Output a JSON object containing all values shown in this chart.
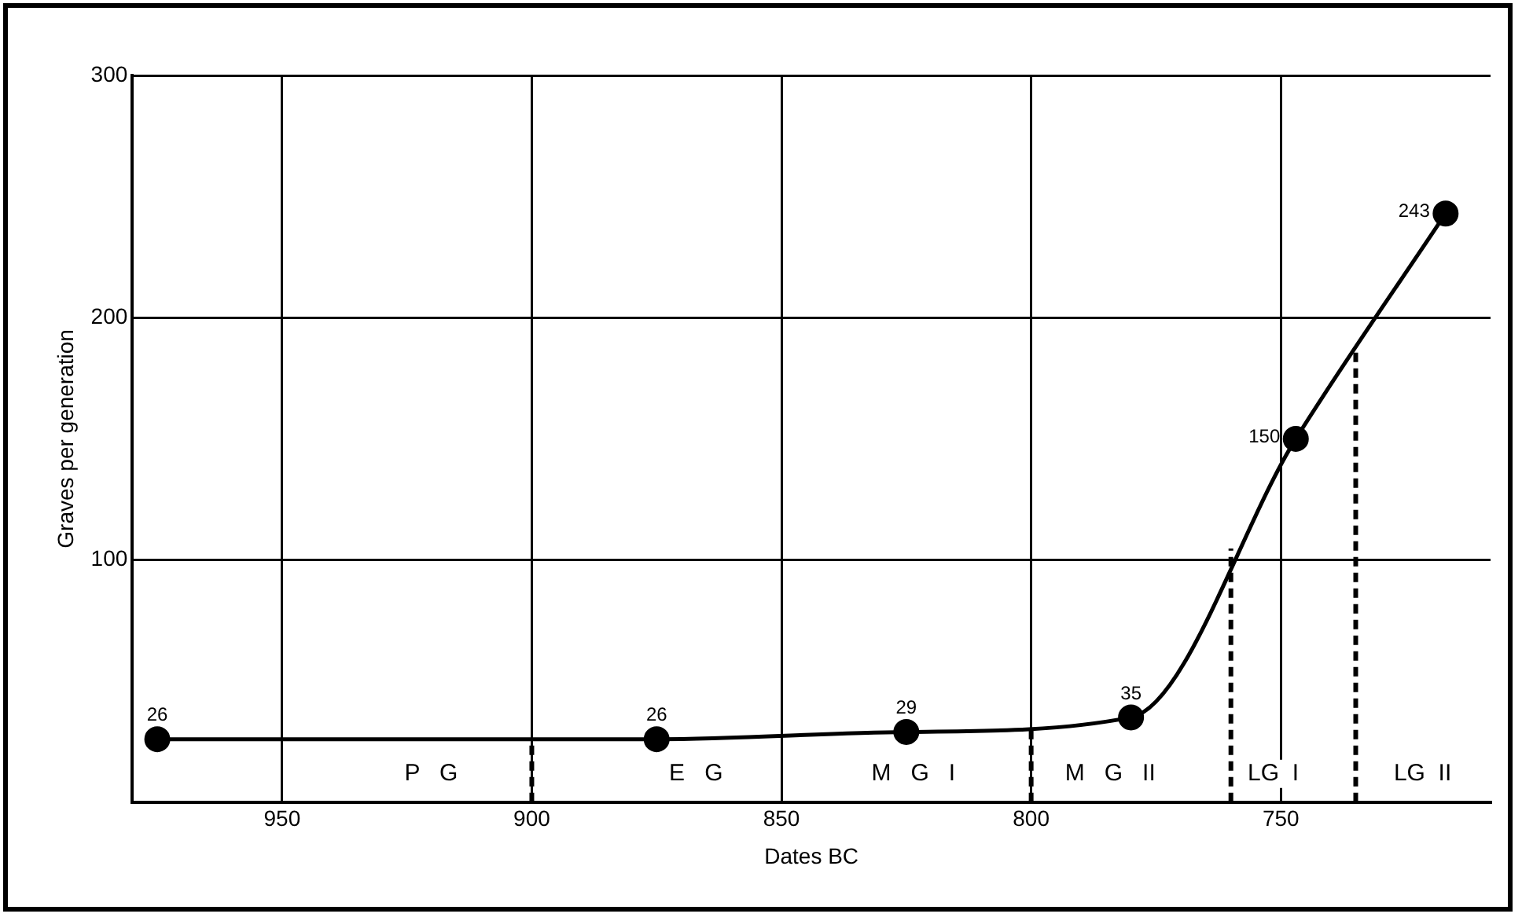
{
  "chart_data": {
    "type": "line",
    "xlabel": "Dates BC",
    "ylabel": "Graves per generation",
    "x": [
      975,
      875,
      825,
      780,
      747,
      717
    ],
    "series": [
      {
        "color": "#000000",
        "values": [
          26,
          26,
          29,
          35,
          150,
          243
        ]
      }
    ],
    "xlim": [
      980,
      708
    ],
    "xticks": [
      950,
      900,
      850,
      800,
      750
    ],
    "ylim": [
      0,
      300
    ],
    "yticks": [
      100,
      200,
      300
    ],
    "grid": true,
    "marker": "circle",
    "line_style": "solid",
    "data_labels": true,
    "legend": false,
    "ref_lines": [
      {
        "axis": "x",
        "value": 900,
        "line_style": "dashed"
      },
      {
        "axis": "x",
        "value": 800,
        "line_style": "dashed"
      },
      {
        "axis": "x",
        "value": 760,
        "line_style": "dashed"
      },
      {
        "axis": "x",
        "value": 735,
        "line_style": "dashed"
      }
    ],
    "annotations": [
      "P   G",
      "E   G",
      "M   G   I",
      "M   G   II",
      "LG  I",
      "LG  II"
    ]
  }
}
